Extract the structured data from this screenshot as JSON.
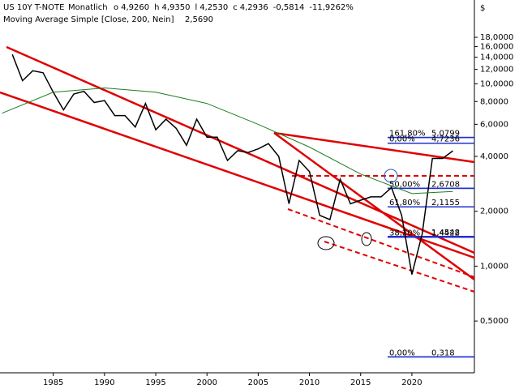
{
  "chart_data": {
    "type": "line",
    "title": "US 10Y T-NOTE",
    "subtitle": "Monatlich",
    "quote": [
      "o",
      "4,9260",
      "h",
      "4,9350",
      "l",
      "4,2530",
      "c",
      "4,2936",
      "-0,5814",
      "-11,9262%"
    ],
    "indicator": {
      "name": "Moving Average Simple [Close, 200, Nein]",
      "value_label": "2,5690"
    },
    "currency": "$",
    "log_scale": true,
    "xlim": [
      1979.8,
      2026.1
    ],
    "ylim": [
      0.26,
      23.5
    ],
    "xticks": [
      1985,
      1990,
      1995,
      2000,
      2005,
      2010,
      2015,
      2020
    ],
    "yticks": [
      {
        "value": 18,
        "label": "18,0000"
      },
      {
        "value": 16,
        "label": "16,0000"
      },
      {
        "value": 14,
        "label": "14,0000"
      },
      {
        "value": 12,
        "label": "12,0000"
      },
      {
        "value": 10,
        "label": "10,0000"
      },
      {
        "value": 8,
        "label": "8,0000"
      },
      {
        "value": 6,
        "label": "6,0000"
      },
      {
        "value": 4,
        "label": "4,0000"
      },
      {
        "value": 2,
        "label": "2,0000"
      },
      {
        "value": 1,
        "label": "1,0000"
      },
      {
        "value": 0.5,
        "label": "0,5000"
      }
    ],
    "series": [
      {
        "name": "US 10Y T-NOTE",
        "color": "#000000",
        "x": [
          1981,
          1982,
          1983,
          1984,
          1985,
          1986,
          1987,
          1988,
          1989,
          1990,
          1991,
          1992,
          1993,
          1994,
          1995,
          1996,
          1997,
          1998,
          1999,
          2000,
          2001,
          2002,
          2003,
          2004,
          2005,
          2006,
          2007,
          2008,
          2009,
          2010,
          2011,
          2012,
          2013,
          2014,
          2015,
          2016,
          2017,
          2018,
          2019,
          2020,
          2021,
          2022,
          2023,
          2024
        ],
        "values": [
          14.5,
          10.4,
          11.8,
          11.5,
          9.0,
          7.2,
          8.8,
          9.1,
          7.9,
          8.1,
          6.7,
          6.7,
          5.8,
          7.8,
          5.6,
          6.4,
          5.7,
          4.6,
          6.4,
          5.1,
          5.1,
          3.8,
          4.3,
          4.2,
          4.4,
          4.7,
          4.0,
          2.2,
          3.8,
          3.3,
          1.9,
          1.8,
          3.0,
          2.2,
          2.3,
          2.4,
          2.4,
          2.7,
          1.9,
          0.9,
          1.5,
          3.9,
          3.9,
          4.29
        ]
      },
      {
        "name": "Moving Average Simple",
        "color": "#1e7d1e",
        "x": [
          1980,
          1985,
          1990,
          1995,
          2000,
          2005,
          2010,
          2015,
          2020,
          2024
        ],
        "values": [
          6.9,
          9.0,
          9.5,
          9.0,
          7.8,
          6.0,
          4.5,
          3.2,
          2.5,
          2.57
        ]
      }
    ],
    "annotations": [
      {
        "label": "161,80%",
        "value": 5.0799
      },
      {
        "label": "5,0799",
        "value": 5.0799
      },
      {
        "label": "0,00%",
        "value": 4.7236
      },
      {
        "label": "4,7236",
        "value": 4.7236
      },
      {
        "label": "50,00%",
        "value": 2.6708
      },
      {
        "label": "2,6708",
        "value": 2.6708
      },
      {
        "label": "61,80%",
        "value": 2.1155
      },
      {
        "label": "2,1155",
        "value": 2.1155
      },
      {
        "label": "1,4548",
        "value": 1.4548
      },
      {
        "label": "38,20%",
        "value": 1.4422
      },
      {
        "label": "1,4422",
        "value": 1.4422
      },
      {
        "label": "0,00%",
        "value": 0.318
      },
      {
        "label": "0,318",
        "value": 0.318
      }
    ]
  }
}
